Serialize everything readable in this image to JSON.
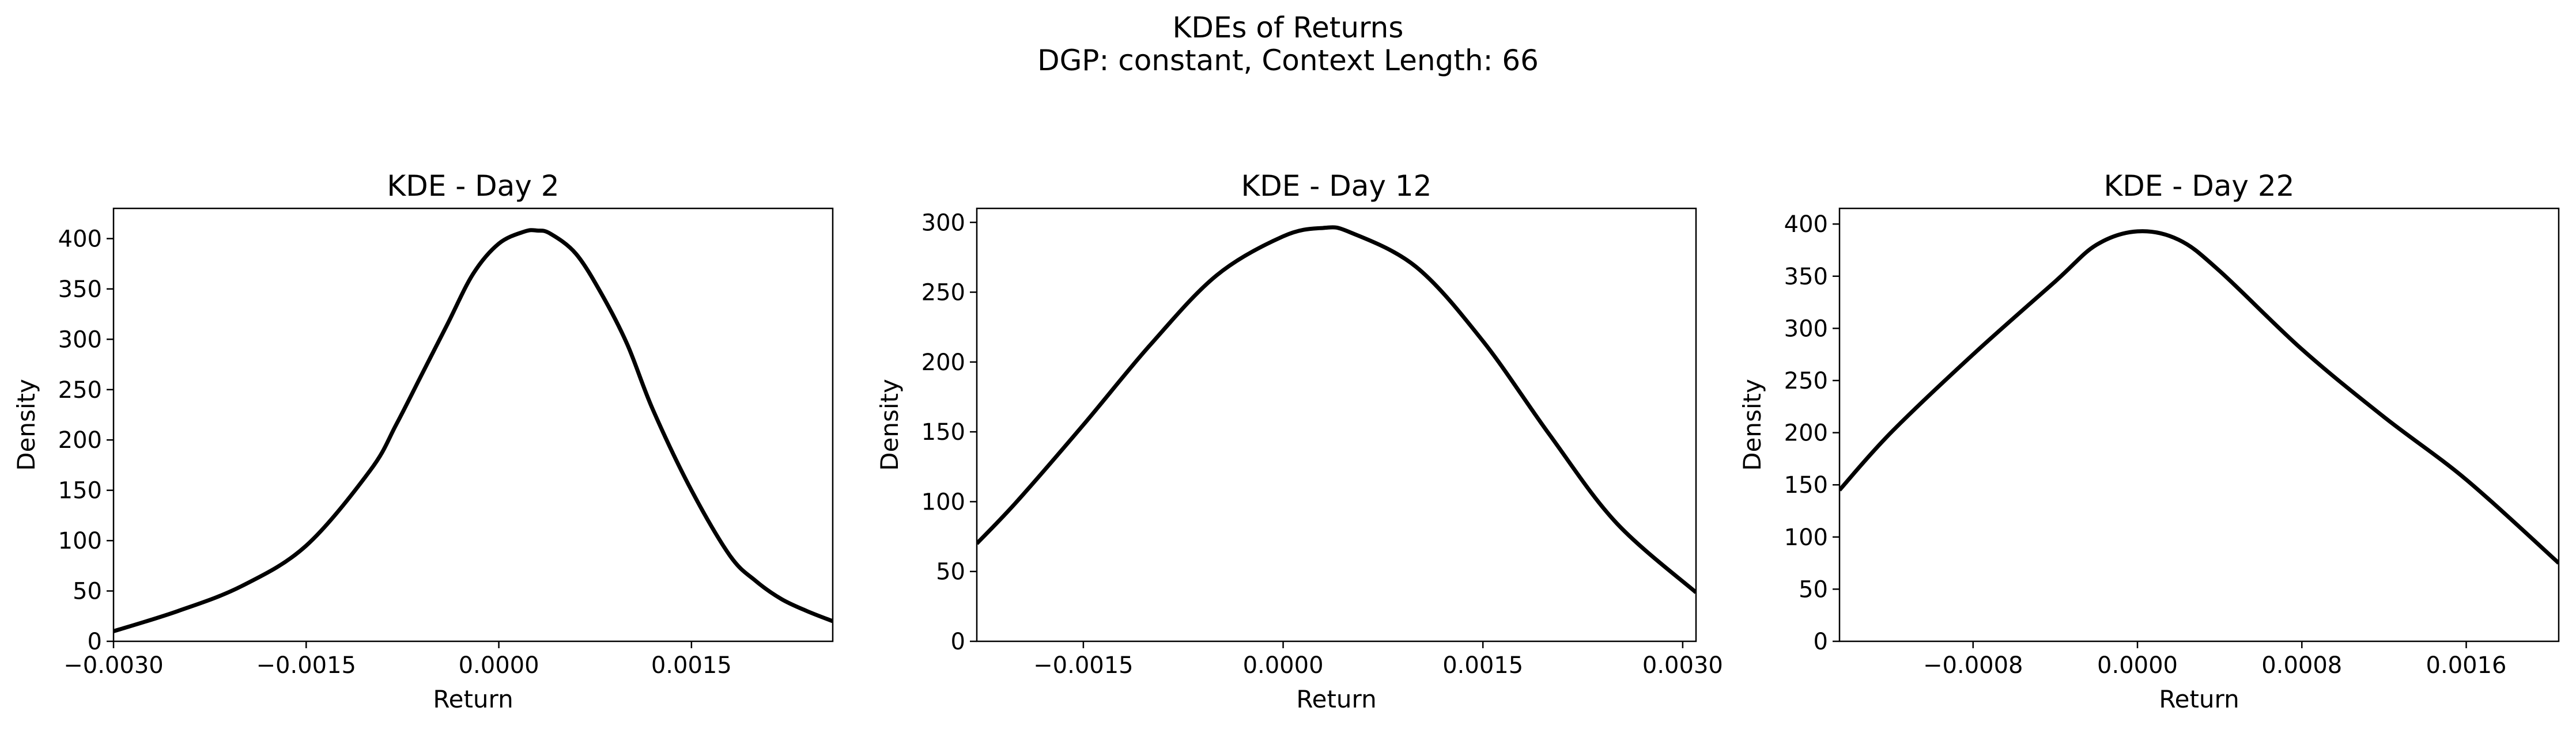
{
  "figure": {
    "title_line1": "KDEs of Returns",
    "title_line2": "DGP: constant, Context Length: 66"
  },
  "chart_data": [
    {
      "type": "line",
      "title": "KDE - Day 2",
      "xlabel": "Return",
      "ylabel": "Density",
      "xlim": [
        -0.003,
        0.0026
      ],
      "ylim": [
        0,
        430
      ],
      "xticks": [
        -0.003,
        -0.0015,
        0.0,
        0.0015
      ],
      "xtick_labels": [
        "−0.0030",
        "−0.0015",
        "0.0000",
        "0.0015"
      ],
      "yticks": [
        0,
        50,
        100,
        150,
        200,
        250,
        300,
        350,
        400
      ],
      "ytick_labels": [
        "0",
        "50",
        "100",
        "150",
        "200",
        "250",
        "300",
        "350",
        "400"
      ],
      "series": [
        {
          "color": "#000000",
          "x": [
            -0.003,
            -0.0025,
            -0.002,
            -0.0015,
            -0.001,
            -0.0008,
            -0.0006,
            -0.0004,
            -0.0002,
            0.0,
            0.0002,
            0.0003,
            0.0004,
            0.0006,
            0.0008,
            0.001,
            0.0012,
            0.0015,
            0.0018,
            0.002,
            0.0022,
            0.0024,
            0.0026
          ],
          "y": [
            10,
            30,
            55,
            95,
            170,
            215,
            265,
            315,
            365,
            395,
            407,
            408,
            405,
            385,
            345,
            295,
            230,
            150,
            85,
            60,
            42,
            30,
            20
          ]
        }
      ]
    },
    {
      "type": "line",
      "title": "KDE - Day 12",
      "xlabel": "Return",
      "ylabel": "Density",
      "xlim": [
        -0.0023,
        0.0031
      ],
      "ylim": [
        0,
        310
      ],
      "xticks": [
        -0.0015,
        0.0,
        0.0015,
        0.003
      ],
      "xtick_labels": [
        "−0.0015",
        "0.0000",
        "0.0015",
        "0.0030"
      ],
      "yticks": [
        0,
        50,
        100,
        150,
        200,
        250,
        300
      ],
      "ytick_labels": [
        "0",
        "50",
        "100",
        "150",
        "200",
        "250",
        "300"
      ],
      "series": [
        {
          "color": "#000000",
          "x": [
            -0.0023,
            -0.002,
            -0.0015,
            -0.001,
            -0.0005,
            0.0,
            0.0003,
            0.0005,
            0.001,
            0.0015,
            0.002,
            0.0025,
            0.0031
          ],
          "y": [
            70,
            100,
            155,
            212,
            262,
            290,
            296,
            293,
            268,
            215,
            148,
            85,
            35
          ]
        }
      ]
    },
    {
      "type": "line",
      "title": "KDE - Day 22",
      "xlabel": "Return",
      "ylabel": "Density",
      "xlim": [
        -0.00145,
        0.00205
      ],
      "ylim": [
        0,
        415
      ],
      "xticks": [
        -0.0008,
        0.0,
        0.0008,
        0.0016
      ],
      "xtick_labels": [
        "−0.0008",
        "0.0000",
        "0.0008",
        "0.0016"
      ],
      "yticks": [
        0,
        50,
        100,
        150,
        200,
        250,
        300,
        350,
        400
      ],
      "ytick_labels": [
        "0",
        "50",
        "100",
        "150",
        "200",
        "250",
        "300",
        "350",
        "400"
      ],
      "series": [
        {
          "color": "#000000",
          "x": [
            -0.00145,
            -0.0012,
            -0.0008,
            -0.0004,
            -0.0002,
            0.0,
            0.0002,
            0.0004,
            0.0008,
            0.0012,
            0.0016,
            0.00205
          ],
          "y": [
            145,
            200,
            275,
            345,
            380,
            393,
            385,
            355,
            280,
            215,
            155,
            75
          ]
        }
      ]
    }
  ]
}
